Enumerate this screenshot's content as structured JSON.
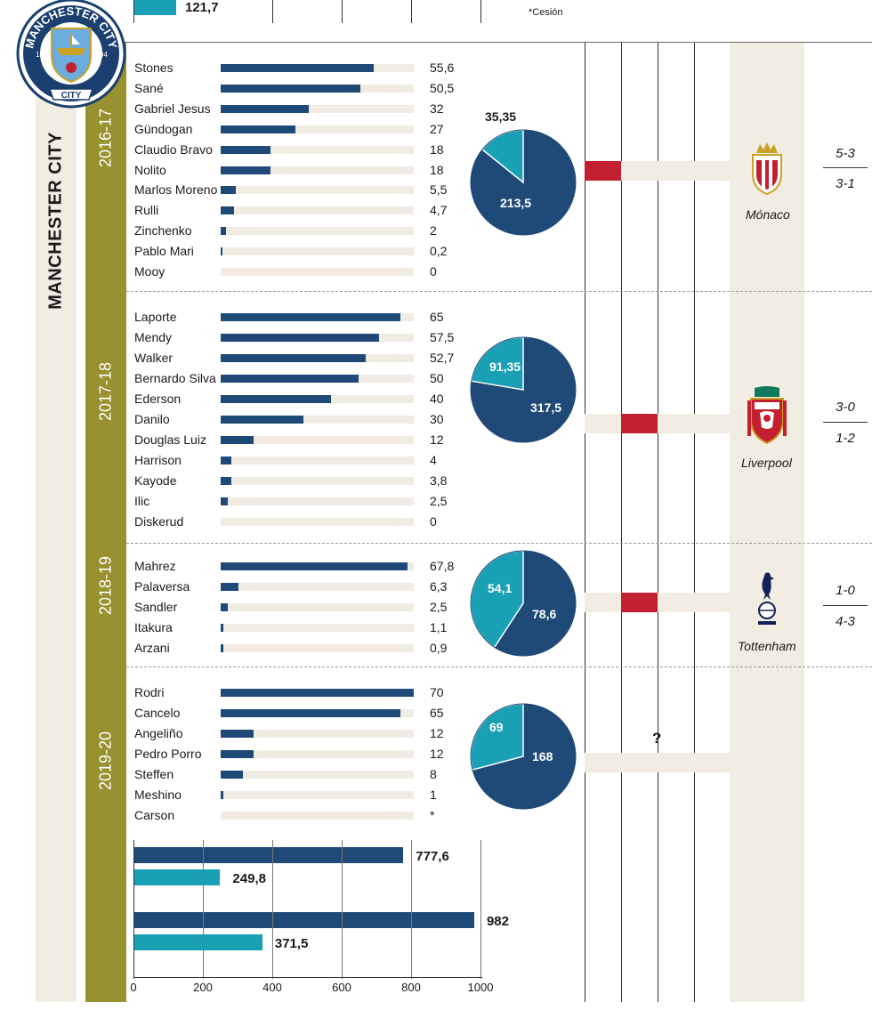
{
  "colors": {
    "dark_blue": "#1f4a78",
    "cyan": "#1aa0b4",
    "olive": "#97912f",
    "beige": "#f1ede3",
    "red": "#c2202e"
  },
  "header": {
    "top_value": "121,7",
    "note": "*Cesión"
  },
  "team": {
    "name": "MANCHESTER CITY",
    "crest_text": "MANCHESTER CITY",
    "crest_years": [
      "18",
      "94"
    ]
  },
  "chart_data": [
    {
      "type": "bar",
      "season": "2016-17",
      "categories": [
        "Stones",
        "Sané",
        "Gabriel Jesus",
        "Gündogan",
        "Claudio Bravo",
        "Nolito",
        "Marlos Moreno",
        "Rulli",
        "Zinchenko",
        "Pablo Mari",
        "Mooy"
      ],
      "values": [
        55.6,
        50.5,
        32,
        27,
        18,
        18,
        5.5,
        4.7,
        2,
        0.2,
        0
      ],
      "value_labels": [
        "55,6",
        "50,5",
        "32",
        "27",
        "18",
        "18",
        "5,5",
        "4,7",
        "2",
        "0,2",
        "0"
      ],
      "xlim": [
        0,
        70
      ]
    },
    {
      "type": "bar",
      "season": "2017-18",
      "categories": [
        "Laporte",
        "Mendy",
        "Walker",
        "Bernardo Silva",
        "Ederson",
        "Danilo",
        "Douglas Luiz",
        "Harrison",
        "Kayode",
        "Ilic",
        "Diskerud"
      ],
      "values": [
        65,
        57.5,
        52.7,
        50,
        40,
        30,
        12,
        4,
        3.8,
        2.5,
        0
      ],
      "value_labels": [
        "65",
        "57,5",
        "52,7",
        "50",
        "40",
        "30",
        "12",
        "4",
        "3,8",
        "2,5",
        "0"
      ],
      "xlim": [
        0,
        70
      ]
    },
    {
      "type": "bar",
      "season": "2018-19",
      "categories": [
        "Mahrez",
        "Palaversa",
        "Sandler",
        "Itakura",
        "Arzani"
      ],
      "values": [
        67.8,
        6.3,
        2.5,
        1.1,
        0.9
      ],
      "value_labels": [
        "67,8",
        "6,3",
        "2,5",
        "1,1",
        "0,9"
      ],
      "xlim": [
        0,
        70
      ]
    },
    {
      "type": "bar",
      "season": "2019-20",
      "categories": [
        "Rodri",
        "Cancelo",
        "Angeliño",
        "Pedro Porro",
        "Steffen",
        "Meshino",
        "Carson"
      ],
      "values": [
        70,
        65,
        12,
        12,
        8,
        1,
        0
      ],
      "value_labels": [
        "70",
        "65",
        "12",
        "12",
        "8",
        "1",
        "*"
      ],
      "xlim": [
        0,
        70
      ]
    },
    {
      "type": "pie",
      "season": "2016-17",
      "slices": [
        {
          "value": 213.5,
          "label": "213,5",
          "color": "#1f4a78"
        },
        {
          "value": 35.35,
          "label": "35,35",
          "color": "#1aa0b4"
        }
      ]
    },
    {
      "type": "pie",
      "season": "2017-18",
      "slices": [
        {
          "value": 317.5,
          "label": "317,5",
          "color": "#1f4a78"
        },
        {
          "value": 91.35,
          "label": "91,35",
          "color": "#1aa0b4"
        }
      ]
    },
    {
      "type": "pie",
      "season": "2018-19",
      "slices": [
        {
          "value": 78.6,
          "label": "78,6",
          "color": "#1f4a78"
        },
        {
          "value": 54.1,
          "label": "54,1",
          "color": "#1aa0b4"
        }
      ]
    },
    {
      "type": "pie",
      "season": "2019-20",
      "slices": [
        {
          "value": 168,
          "label": "168",
          "color": "#1f4a78"
        },
        {
          "value": 69,
          "label": "69",
          "color": "#1aa0b4"
        }
      ]
    },
    {
      "type": "bar",
      "orientation": "horizontal",
      "bars": [
        {
          "value": 777.6,
          "label": "777,6",
          "color": "#1f4a78"
        },
        {
          "value": 249.8,
          "label": "249,8",
          "color": "#1aa0b4"
        },
        {
          "value": 982,
          "label": "982",
          "color": "#1f4a78"
        },
        {
          "value": 371.5,
          "label": "371,5",
          "color": "#1aa0b4"
        }
      ],
      "xlim": [
        0,
        1000
      ],
      "ticks": [
        0,
        200,
        400,
        600,
        800,
        1000
      ],
      "tick_labels": [
        "0",
        "200",
        "400",
        "600",
        "800",
        "1000"
      ]
    }
  ],
  "eliminations": [
    {
      "season": "2016-17",
      "club": "Mónaco",
      "score1": "5-3",
      "score2": "3-1",
      "round_index": 0,
      "crest_colors": [
        "#c2202e",
        "#ffffff",
        "#c9a227"
      ]
    },
    {
      "season": "2017-18",
      "club": "Liverpool",
      "score1": "3-0",
      "score2": "1-2",
      "round_index": 1,
      "crest_colors": [
        "#c2202e",
        "#0f7a5c",
        "#c9a227"
      ]
    },
    {
      "season": "2018-19",
      "club": "Tottenham",
      "score1": "1-0",
      "score2": "4-3",
      "round_index": 1,
      "crest_colors": [
        "#132257"
      ]
    },
    {
      "season": "2019-20",
      "unknown": "?"
    }
  ]
}
